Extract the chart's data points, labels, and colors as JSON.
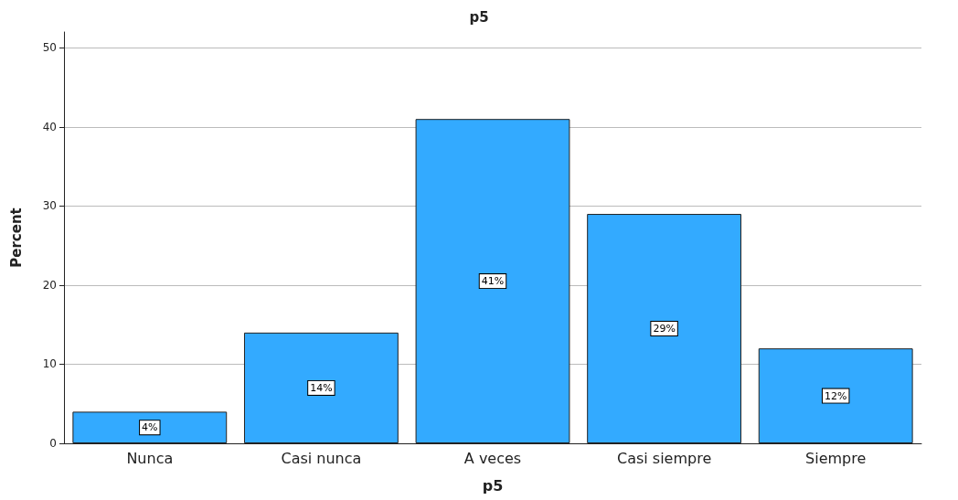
{
  "chart_data": {
    "type": "bar",
    "title": "p5",
    "xlabel": "p5",
    "ylabel": "Percent",
    "categories": [
      "Nunca",
      "Casi nunca",
      "A veces",
      "Casi siempre",
      "Siempre"
    ],
    "values": [
      4,
      14,
      41,
      29,
      12
    ],
    "value_labels": [
      "4%",
      "14%",
      "41%",
      "29%",
      "12%"
    ],
    "color": "#33aaff",
    "ylim": [
      0,
      52
    ],
    "yticks": [
      0,
      10,
      20,
      30,
      40,
      50
    ],
    "grid": "y"
  }
}
